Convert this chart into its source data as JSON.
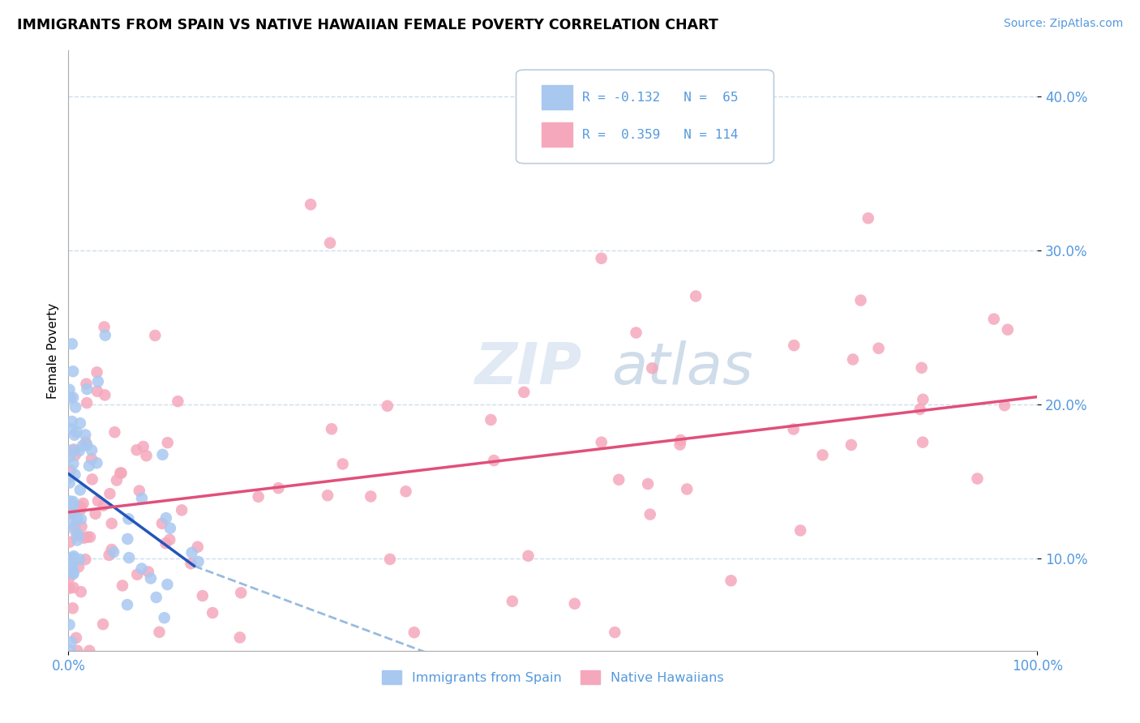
{
  "title": "IMMIGRANTS FROM SPAIN VS NATIVE HAWAIIAN FEMALE POVERTY CORRELATION CHART",
  "source": "Source: ZipAtlas.com",
  "ylabel": "Female Poverty",
  "ytick_vals": [
    0.1,
    0.2,
    0.3,
    0.4
  ],
  "ytick_labels": [
    "10.0%",
    "20.0%",
    "30.0%",
    "40.0%"
  ],
  "xtick_vals": [
    0.0,
    1.0
  ],
  "xtick_labels": [
    "0.0%",
    "100.0%"
  ],
  "xlim": [
    0.0,
    1.0
  ],
  "ylim": [
    0.04,
    0.43
  ],
  "legend_text1": "R = -0.132   N =  65",
  "legend_text2": "R =  0.359   N = 114",
  "legend_label1": "Immigrants from Spain",
  "legend_label2": "Native Hawaiians",
  "color_blue": "#A8C8F0",
  "color_pink": "#F5A8BC",
  "color_blue_line": "#2255BB",
  "color_pink_line": "#E0507A",
  "color_dashed": "#99BBDD",
  "color_grid": "#CCDDEE",
  "color_tick": "#5599DD",
  "blue_line_x": [
    0.0,
    0.13
  ],
  "blue_line_y": [
    0.155,
    0.095
  ],
  "dashed_line_x": [
    0.13,
    0.62
  ],
  "dashed_line_y": [
    0.095,
    -0.02
  ],
  "pink_line_x": [
    0.0,
    1.0
  ],
  "pink_line_y": [
    0.13,
    0.205
  ]
}
